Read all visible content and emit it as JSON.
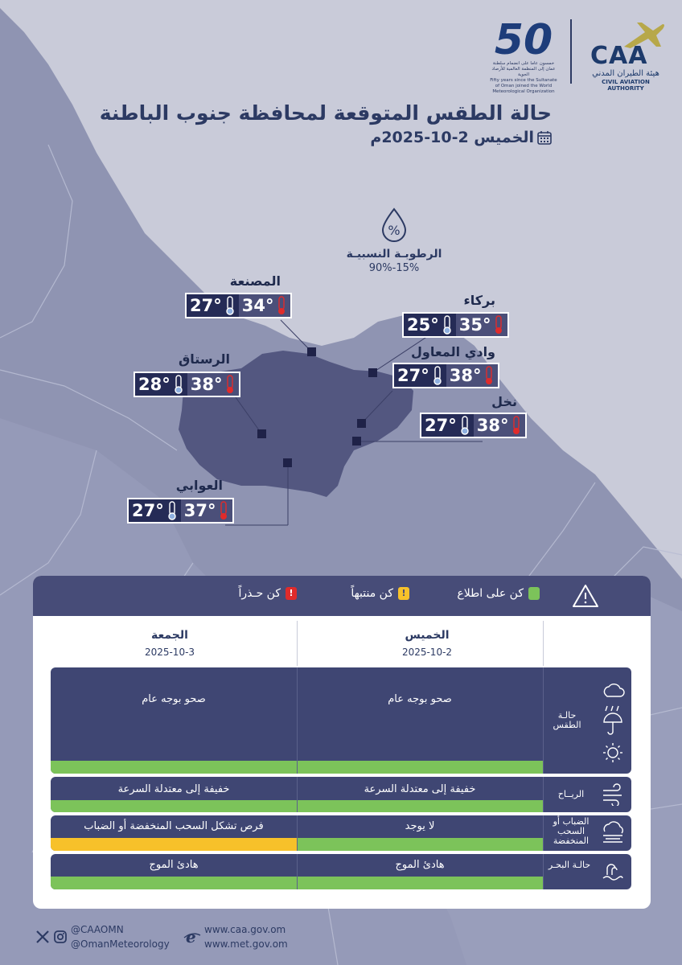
{
  "header": {
    "caa_logo_text": "CAA",
    "caa_arabic": "هيئة الطيران المدني",
    "caa_english": "CIVIL AVIATION AUTHORITY",
    "fifty_number": "50",
    "fifty_sub_ar": "خمسون عاما على انضمام سلطنة عمان إلى المنظمة العالمية للأرصاد الجوية",
    "fifty_sub_en": "Fifty years since the Sultanate of Oman joined the World Meteorological Organization",
    "title": "حالة الطقس المتوقعة لمحافظة جنوب الباطنة",
    "date": "الخميس 2-10-2025م"
  },
  "humidity": {
    "symbol": "%",
    "label": "الرطوبـة النسبيـة",
    "value": "90%-15%"
  },
  "cities": [
    {
      "name": "المصنعة",
      "max": "34°",
      "min": "27°"
    },
    {
      "name": "بركاء",
      "max": "35°",
      "min": "25°"
    },
    {
      "name": "وادي المعاول",
      "max": "38°",
      "min": "27°"
    },
    {
      "name": "الرستاق",
      "max": "38°",
      "min": "28°"
    },
    {
      "name": "نخل",
      "max": "38°",
      "min": "27°"
    },
    {
      "name": "العوابي",
      "max": "37°",
      "min": "27°"
    }
  ],
  "legend": {
    "aware": "كن على اطلاع",
    "alert": "كن منتبهاً",
    "caution": "كن حـذراً",
    "alert_mark": "!",
    "caution_mark": "!"
  },
  "days": [
    {
      "name": "الخميس",
      "date": "2025-10-2"
    },
    {
      "name": "الجمعة",
      "date": "2025-10-3"
    }
  ],
  "rows": [
    {
      "label": "حالـة الطقس",
      "thursday": "صحو بوجه عام",
      "friday": "صحو بوجه عام"
    },
    {
      "label": "الريــاح",
      "thursday": "خفيفة إلى معتدلة السرعة",
      "friday": "خفيفة إلى معتدلة السرعة"
    },
    {
      "label": "الضباب أو السحب المنخفضة",
      "thursday": "لا يوجد",
      "friday": "فرص تشكل السحب المنخفضة أو الضباب"
    },
    {
      "label": "حالـة البحـر",
      "thursday": "هادئ الموج",
      "friday": "هادئ الموج"
    }
  ],
  "colors": {
    "green": "#7cc35a",
    "yellow": "#f7c12a",
    "red": "#e02b2b",
    "navy": "#3f4673"
  },
  "footer": {
    "handle_caa": "@CAAOMN",
    "handle_met": "@OmanMeteorology",
    "site_caa": "www.caa.gov.om",
    "site_met": "www.met.gov.om"
  }
}
